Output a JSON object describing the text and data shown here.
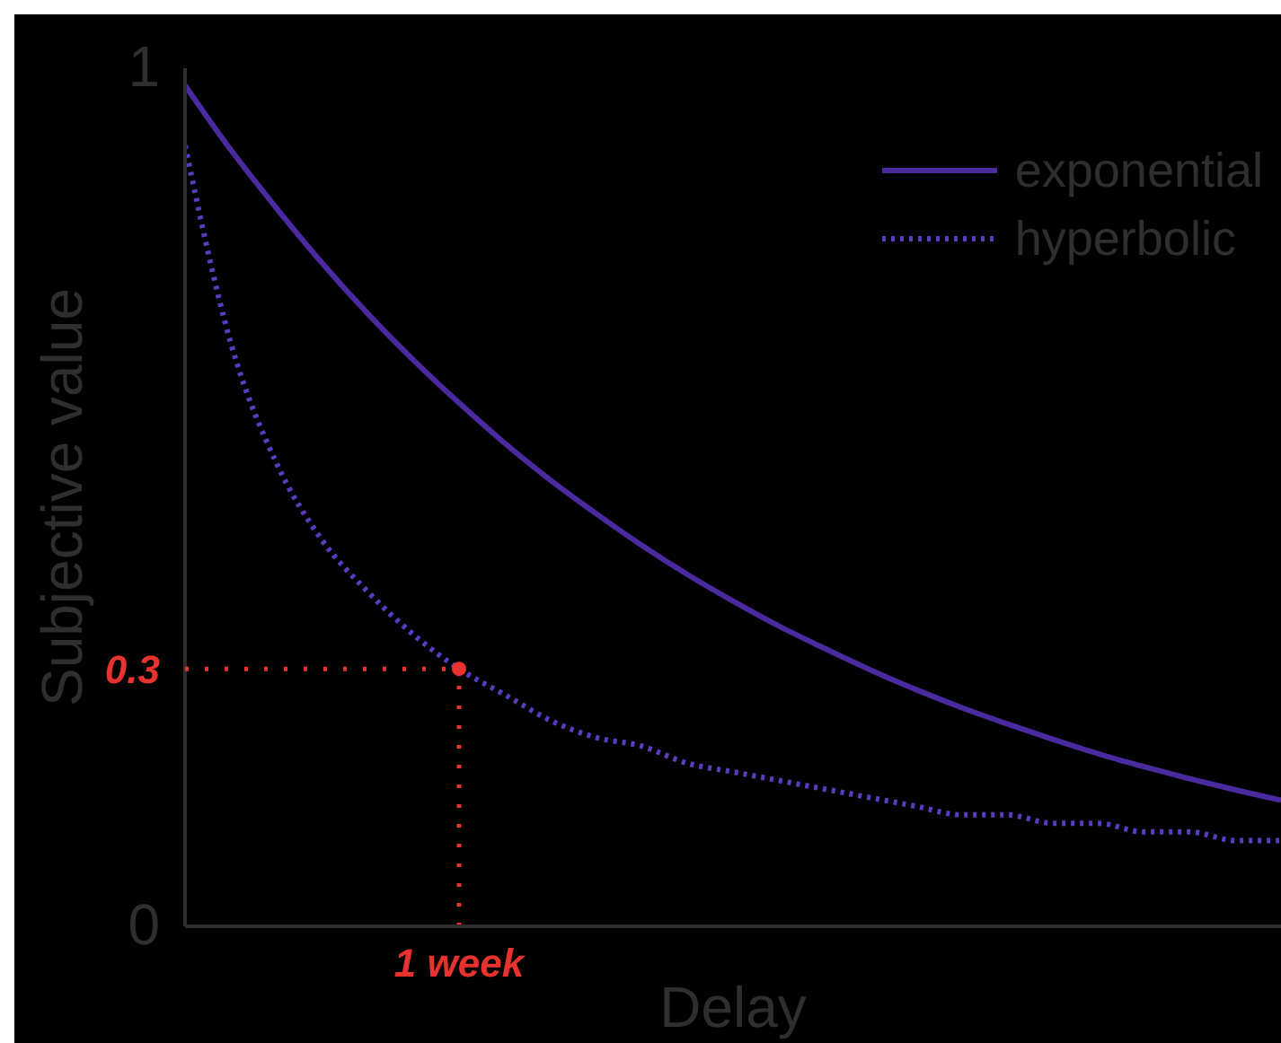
{
  "chart_data": {
    "type": "line",
    "xlabel": "Delay",
    "ylabel": "Subjective value",
    "categories": [
      null,
      null,
      null,
      null,
      null,
      null,
      "1 week",
      null,
      null,
      null,
      null,
      null,
      null,
      null,
      null,
      null,
      null,
      null,
      null,
      null,
      null,
      null,
      null,
      null,
      null
    ],
    "series": [
      {
        "name": "exponential",
        "color": "#4b2aa0",
        "line_style": "solid",
        "values": [
          0.98,
          0.905,
          0.837,
          0.773,
          0.714,
          0.66,
          0.61,
          0.563,
          0.52,
          0.481,
          0.444,
          0.41,
          0.379,
          0.35,
          0.324,
          0.299,
          0.276,
          0.255,
          0.236,
          0.218,
          0.201,
          0.186,
          0.172,
          0.159,
          0.147
        ]
      },
      {
        "name": "hyperbolic",
        "color": "#5a3cc0",
        "line_style": "dotted",
        "values": [
          0.91,
          0.68,
          0.54,
          0.45,
          0.39,
          0.34,
          0.3,
          0.27,
          0.24,
          0.22,
          0.21,
          0.19,
          0.18,
          0.17,
          0.16,
          0.15,
          0.14,
          0.13,
          0.13,
          0.12,
          0.12,
          0.11,
          0.11,
          0.1,
          0.1
        ]
      },
      {
        "type": "line",
        "color": "#e8322e",
        "line_style": "dotted",
        "x": [
          "1 week",
          "1 week"
        ],
        "values": [
          0,
          0.3
        ]
      }
    ],
    "ylim": [
      0,
      1
    ],
    "yticks": [
      0,
      1
    ],
    "grid": false,
    "legend": "top right",
    "annotations": [
      {
        "text": "0.3",
        "x": "1 week",
        "y": 0.3
      }
    ]
  }
}
